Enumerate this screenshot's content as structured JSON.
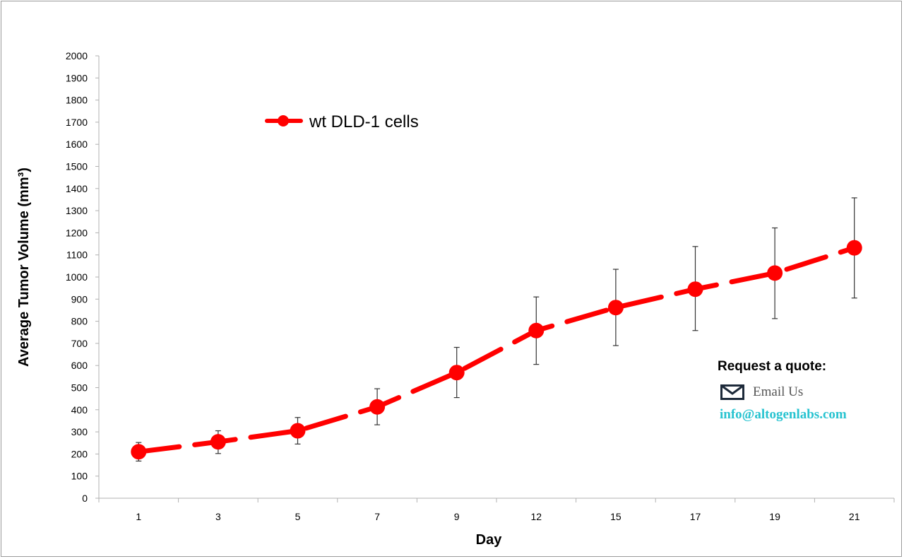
{
  "chart_data": {
    "type": "line",
    "title": "",
    "xlabel": "Day",
    "ylabel": "Average Tumor Volume (mm³)",
    "categories": [
      "1",
      "3",
      "5",
      "7",
      "9",
      "12",
      "15",
      "17",
      "19",
      "21"
    ],
    "ylim": [
      0,
      2000
    ],
    "ytick_step": 100,
    "grid": false,
    "legend_position": "top-left",
    "series": [
      {
        "name": "wt DLD-1 cells",
        "color": "#ff0000",
        "line_style": "dashed",
        "values": [
          210,
          255,
          305,
          413,
          568,
          758,
          862,
          945,
          1018,
          1132
        ],
        "error_upper": [
          252,
          305,
          365,
          495,
          682,
          910,
          1035,
          1138,
          1222,
          1358
        ],
        "error_lower": [
          168,
          202,
          245,
          332,
          455,
          605,
          690,
          758,
          812,
          905
        ]
      }
    ]
  },
  "quote": {
    "title": "Request a quote:",
    "email_icon": "envelope-icon",
    "email_label": "Email Us",
    "email_address": "info@altogenlabs.com"
  }
}
